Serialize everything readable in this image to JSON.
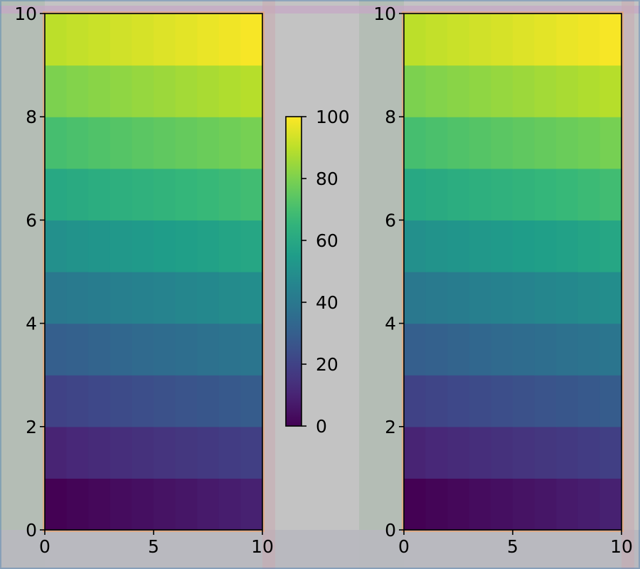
{
  "chart_data": [
    {
      "type": "heatmap",
      "title": "",
      "xlabel": "",
      "ylabel": "",
      "x_edges": [
        0,
        1,
        2,
        3,
        4,
        5,
        6,
        7,
        8,
        9,
        10
      ],
      "y_edges": [
        0,
        1,
        2,
        3,
        4,
        5,
        6,
        7,
        8,
        9,
        10
      ],
      "xlim": [
        0,
        10
      ],
      "ylim": [
        0,
        10
      ],
      "xticks": [
        0,
        5,
        10
      ],
      "xtick_labels": [
        "0",
        "5",
        "10"
      ],
      "yticks": [
        0,
        2,
        4,
        6,
        8,
        10
      ],
      "ytick_labels": [
        "0",
        "2",
        "4",
        "6",
        "8",
        "10"
      ],
      "values_rule": "value(row i, col j) = 10*i + j, row 0 at bottom",
      "values": [
        [
          0,
          1,
          2,
          3,
          4,
          5,
          6,
          7,
          8,
          9
        ],
        [
          10,
          11,
          12,
          13,
          14,
          15,
          16,
          17,
          18,
          19
        ],
        [
          20,
          21,
          22,
          23,
          24,
          25,
          26,
          27,
          28,
          29
        ],
        [
          30,
          31,
          32,
          33,
          34,
          35,
          36,
          37,
          38,
          39
        ],
        [
          40,
          41,
          42,
          43,
          44,
          45,
          46,
          47,
          48,
          49
        ],
        [
          50,
          51,
          52,
          53,
          54,
          55,
          56,
          57,
          58,
          59
        ],
        [
          60,
          61,
          62,
          63,
          64,
          65,
          66,
          67,
          68,
          69
        ],
        [
          70,
          71,
          72,
          73,
          74,
          75,
          76,
          77,
          78,
          79
        ],
        [
          80,
          81,
          82,
          83,
          84,
          85,
          86,
          87,
          88,
          89
        ],
        [
          90,
          91,
          92,
          93,
          94,
          95,
          96,
          97,
          98,
          99
        ]
      ],
      "colormap": "viridis",
      "vmin": 0,
      "vmax": 100
    },
    {
      "type": "heatmap",
      "title": "",
      "xlabel": "",
      "ylabel": "",
      "x_edges": [
        0,
        1,
        2,
        3,
        4,
        5,
        6,
        7,
        8,
        9,
        10
      ],
      "y_edges": [
        0,
        1,
        2,
        3,
        4,
        5,
        6,
        7,
        8,
        9,
        10
      ],
      "xlim": [
        0,
        10
      ],
      "ylim": [
        0,
        10
      ],
      "xticks": [
        0,
        5,
        10
      ],
      "xtick_labels": [
        "0",
        "5",
        "10"
      ],
      "yticks": [
        0,
        2,
        4,
        6,
        8,
        10
      ],
      "ytick_labels": [
        "0",
        "2",
        "4",
        "6",
        "8",
        "10"
      ],
      "values_rule": "value(row i, col j) = 10*i + j, row 0 at bottom",
      "values": [
        [
          0,
          1,
          2,
          3,
          4,
          5,
          6,
          7,
          8,
          9
        ],
        [
          10,
          11,
          12,
          13,
          14,
          15,
          16,
          17,
          18,
          19
        ],
        [
          20,
          21,
          22,
          23,
          24,
          25,
          26,
          27,
          28,
          29
        ],
        [
          30,
          31,
          32,
          33,
          34,
          35,
          36,
          37,
          38,
          39
        ],
        [
          40,
          41,
          42,
          43,
          44,
          45,
          46,
          47,
          48,
          49
        ],
        [
          50,
          51,
          52,
          53,
          54,
          55,
          56,
          57,
          58,
          59
        ],
        [
          60,
          61,
          62,
          63,
          64,
          65,
          66,
          67,
          68,
          69
        ],
        [
          70,
          71,
          72,
          73,
          74,
          75,
          76,
          77,
          78,
          79
        ],
        [
          80,
          81,
          82,
          83,
          84,
          85,
          86,
          87,
          88,
          89
        ],
        [
          90,
          91,
          92,
          93,
          94,
          95,
          96,
          97,
          98,
          99
        ]
      ],
      "colormap": "viridis",
      "vmin": 0,
      "vmax": 100
    }
  ],
  "colorbar": {
    "range": [
      0,
      100
    ],
    "ticks": [
      0,
      20,
      40,
      60,
      80,
      100
    ],
    "tick_labels": [
      "0",
      "20",
      "40",
      "60",
      "80",
      "100"
    ],
    "colormap": "viridis"
  },
  "colors": {
    "figure_background": "#c3c3c3",
    "left_panel_tint": "#b3bdb4",
    "bottom_strip_tint": "#b8b8bf",
    "top_strip_tint": "#c6a6c6",
    "axes_outline_tint": "#e6a87a",
    "axis_spine": "#000000"
  },
  "viridis_stops": [
    "#440154",
    "#482878",
    "#3e4989",
    "#31688e",
    "#26828e",
    "#1f9e89",
    "#35b779",
    "#6ece58",
    "#b5de2b",
    "#fde725"
  ]
}
